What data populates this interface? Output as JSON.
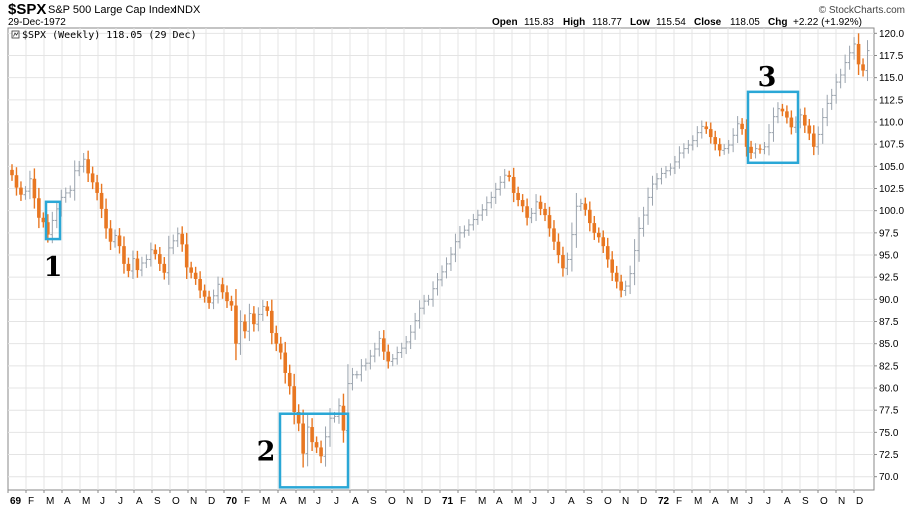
{
  "header": {
    "ticker": "$SPX",
    "name": "S&P 500 Large Cap Index",
    "exchange": "INDX",
    "date": "29-Dec-1972",
    "brand": "© StockCharts.com",
    "quote": [
      {
        "label": "Open",
        "value": "115.83"
      },
      {
        "label": "High",
        "value": "118.77"
      },
      {
        "label": "Low",
        "value": "115.54"
      },
      {
        "label": "Close",
        "value": "118.05"
      },
      {
        "label": "Chg",
        "value": "+2.22 (+1.92%)"
      }
    ],
    "legend": "$SPX (Weekly) 118.05 (29 Dec)"
  },
  "colors": {
    "up": "#9aa3ad",
    "down": "#e87722",
    "box": "#2aa7d6",
    "grid": "#e4e4e4",
    "axis": "#888888"
  },
  "chart_data": {
    "type": "bar",
    "style": "weekly OHLC bars (up = gray, down = orange)",
    "ylim": [
      68.5,
      120.6
    ],
    "y_ticks": [
      70,
      72.5,
      75,
      77.5,
      80,
      82.5,
      85,
      87.5,
      90,
      92.5,
      95,
      97.5,
      100,
      102.5,
      105,
      107.5,
      110,
      112.5,
      115,
      117.5,
      120
    ],
    "x_months": [
      "69",
      "F",
      "M",
      "A",
      "M",
      "J",
      "J",
      "A",
      "S",
      "O",
      "N",
      "D",
      "70",
      "F",
      "M",
      "A",
      "M",
      "J",
      "J",
      "A",
      "S",
      "O",
      "N",
      "D",
      "71",
      "F",
      "M",
      "A",
      "M",
      "J",
      "J",
      "A",
      "S",
      "O",
      "N",
      "D",
      "72",
      "F",
      "M",
      "A",
      "M",
      "J",
      "J",
      "A",
      "S",
      "O",
      "N",
      "D"
    ],
    "year_labels": [
      "69",
      "70",
      "71",
      "72"
    ],
    "weekly_closes": [
      104.0,
      102.6,
      101.8,
      102.2,
      103.6,
      101.4,
      99.2,
      98.7,
      97.3,
      98.9,
      100.2,
      101.5,
      102.0,
      102.3,
      104.5,
      105.0,
      105.8,
      104.2,
      103.2,
      102.0,
      100.2,
      98.0,
      96.5,
      97.2,
      96.0,
      94.0,
      93.2,
      94.6,
      93.3,
      94.1,
      94.5,
      95.6,
      95.1,
      94.0,
      93.0,
      95.8,
      96.6,
      97.4,
      96.2,
      93.6,
      93.0,
      92.3,
      91.0,
      90.3,
      89.6,
      90.4,
      91.7,
      90.8,
      89.8,
      89.3,
      85.0,
      87.5,
      86.4,
      88.4,
      87.2,
      88.3,
      89.2,
      88.7,
      86.2,
      85.0,
      84.0,
      81.7,
      80.2,
      77.3,
      76.0,
      72.6,
      75.6,
      73.9,
      73.3,
      72.3,
      74.5,
      76.6,
      76.8,
      78.0,
      75.2,
      80.5,
      81.5,
      81.5,
      82.5,
      82.8,
      83.6,
      84.4,
      85.6,
      84.1,
      83.0,
      83.3,
      84.0,
      84.5,
      85.2,
      86.3,
      87.6,
      89.0,
      89.8,
      90.0,
      91.2,
      92.2,
      93.1,
      94.0,
      95.1,
      96.5,
      97.5,
      97.8,
      98.4,
      99.0,
      99.5,
      100.1,
      100.9,
      101.5,
      102.4,
      103.2,
      104.0,
      103.8,
      102.0,
      101.2,
      100.5,
      99.2,
      99.7,
      101.0,
      100.2,
      99.5,
      98.0,
      96.5,
      95.0,
      93.5,
      94.5,
      97.3,
      100.5,
      100.8,
      100.1,
      98.6,
      97.5,
      97.0,
      96.0,
      94.5,
      93.0,
      92.0,
      91.0,
      91.5,
      92.9,
      95.5,
      98.0,
      99.5,
      101.5,
      103.0,
      103.6,
      104.2,
      104.5,
      104.8,
      105.5,
      106.5,
      107.0,
      107.4,
      107.9,
      108.8,
      109.5,
      109.2,
      108.3,
      107.5,
      106.8,
      107.0,
      107.4,
      108.5,
      109.8,
      109.2,
      107.2,
      106.5,
      107.0,
      106.9,
      107.2,
      108.8,
      110.6,
      111.5,
      111.2,
      110.5,
      109.4,
      110.0,
      110.8,
      109.6,
      108.7,
      107.2,
      108.6,
      110.5,
      112.1,
      113.0,
      114.5,
      115.3,
      116.7,
      117.8,
      118.8,
      116.5,
      115.8,
      118.05
    ],
    "annotations": [
      {
        "label": "1",
        "from": "1969-03",
        "to": "1969-03",
        "low": 96.8,
        "high": 101.0
      },
      {
        "label": "2",
        "from": "1970-04",
        "to": "1970-07",
        "low": 68.8,
        "high": 77.1
      },
      {
        "label": "3",
        "from": "1972-06",
        "to": "1972-08",
        "low": 105.4,
        "high": 113.4
      }
    ]
  }
}
